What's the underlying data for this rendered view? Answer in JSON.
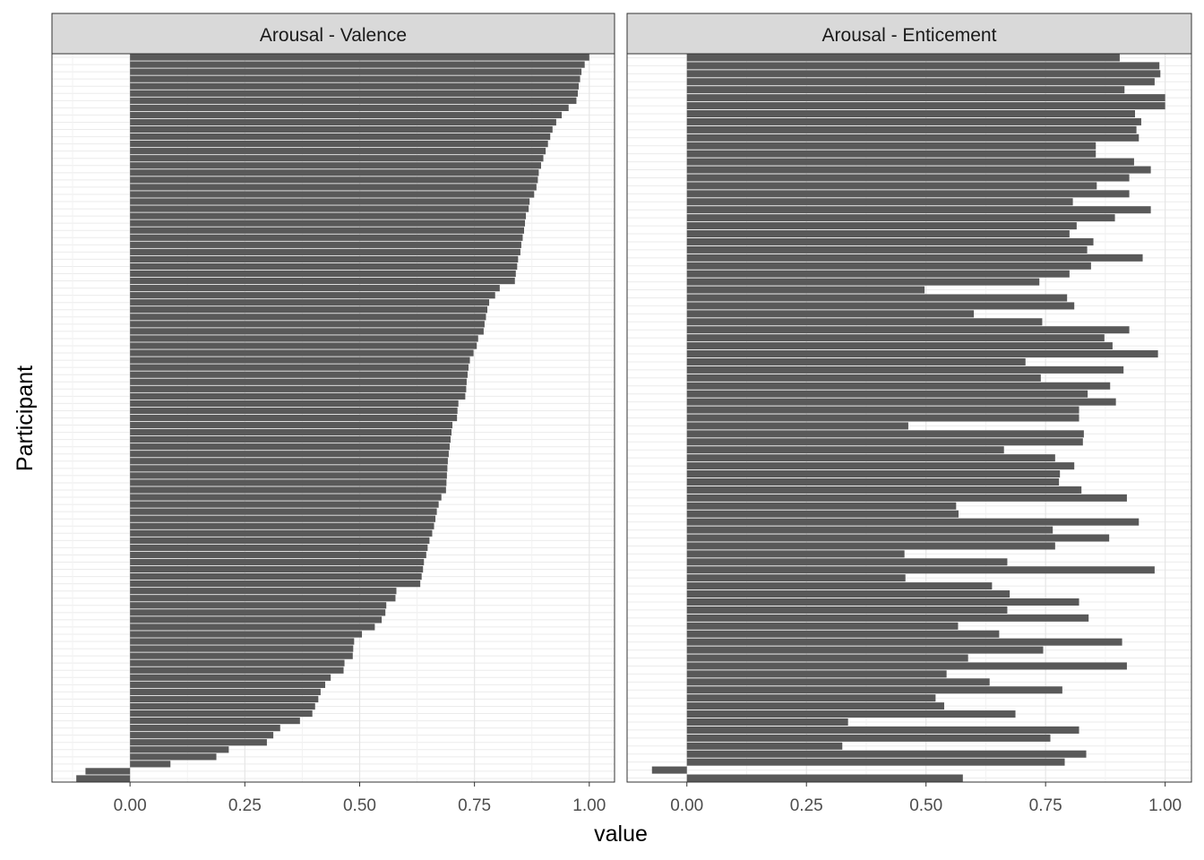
{
  "chart_data": {
    "type": "bar",
    "orientation": "horizontal",
    "xlabel": "value",
    "ylabel": "Participant",
    "grid": true,
    "bar_color": "#595959",
    "strip_fill": "#d9d9d9",
    "panels": [
      {
        "title": "Arousal - Valence",
        "xlim": [
          -0.17,
          1.055
        ],
        "xticks": [
          "0.00",
          "0.25",
          "0.50",
          "0.75",
          "1.00"
        ],
        "values": [
          1.0,
          0.99,
          0.983,
          0.98,
          0.977,
          0.975,
          0.972,
          0.955,
          0.94,
          0.928,
          0.92,
          0.915,
          0.91,
          0.905,
          0.9,
          0.895,
          0.89,
          0.888,
          0.885,
          0.88,
          0.87,
          0.868,
          0.862,
          0.86,
          0.858,
          0.855,
          0.852,
          0.85,
          0.845,
          0.843,
          0.84,
          0.838,
          0.805,
          0.795,
          0.782,
          0.778,
          0.775,
          0.772,
          0.77,
          0.758,
          0.755,
          0.748,
          0.74,
          0.737,
          0.735,
          0.733,
          0.732,
          0.73,
          0.715,
          0.713,
          0.712,
          0.702,
          0.7,
          0.698,
          0.696,
          0.694,
          0.692,
          0.691,
          0.69,
          0.689,
          0.688,
          0.678,
          0.672,
          0.668,
          0.665,
          0.662,
          0.658,
          0.652,
          0.648,
          0.645,
          0.64,
          0.638,
          0.635,
          0.632,
          0.58,
          0.578,
          0.558,
          0.556,
          0.548,
          0.533,
          0.505,
          0.488,
          0.486,
          0.485,
          0.467,
          0.465,
          0.437,
          0.425,
          0.415,
          0.41,
          0.403,
          0.397,
          0.37,
          0.327,
          0.312,
          0.298,
          0.215,
          0.188,
          0.088,
          -0.097,
          -0.117
        ]
      },
      {
        "title": "Arousal - Enticement",
        "xlim": [
          -0.125,
          1.055
        ],
        "xticks": [
          "0.00",
          "0.25",
          "0.50",
          "0.75",
          "1.00"
        ],
        "values": [
          0.905,
          0.988,
          0.99,
          0.978,
          0.915,
          1.0,
          1.0,
          0.937,
          0.95,
          0.94,
          0.945,
          0.855,
          0.855,
          0.935,
          0.97,
          0.925,
          0.857,
          0.925,
          0.807,
          0.97,
          0.895,
          0.815,
          0.8,
          0.85,
          0.837,
          0.953,
          0.845,
          0.8,
          0.737,
          0.497,
          0.795,
          0.81,
          0.6,
          0.743,
          0.925,
          0.873,
          0.89,
          0.985,
          0.708,
          0.913,
          0.74,
          0.885,
          0.838,
          0.897,
          0.82,
          0.82,
          0.463,
          0.83,
          0.828,
          0.663,
          0.77,
          0.81,
          0.78,
          0.778,
          0.825,
          0.92,
          0.563,
          0.568,
          0.945,
          0.765,
          0.883,
          0.77,
          0.455,
          0.67,
          0.978,
          0.457,
          0.638,
          0.675,
          0.82,
          0.67,
          0.84,
          0.567,
          0.653,
          0.91,
          0.745,
          0.588,
          0.92,
          0.543,
          0.633,
          0.785,
          0.52,
          0.538,
          0.687,
          0.337,
          0.82,
          0.76,
          0.325,
          0.835,
          0.79,
          -0.073,
          0.577
        ]
      }
    ]
  }
}
